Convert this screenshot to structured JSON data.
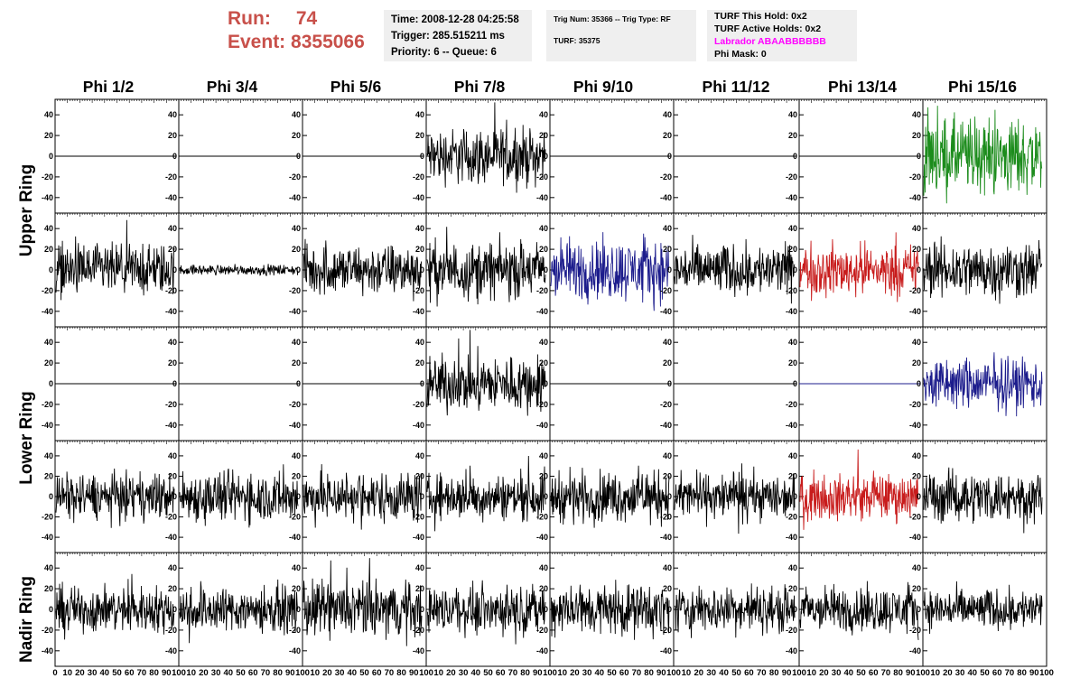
{
  "header": {
    "run_label": "Run:",
    "run_value": "74",
    "event_label": "Event:",
    "event_value": "8355066"
  },
  "info_time": {
    "time": "Time: 2008-12-28 04:25:58",
    "trigger": "Trigger: 285.515211 ms",
    "priority": "Priority: 6 -- Queue: 6"
  },
  "info_trig": {
    "trig": "Trig Num: 35366 -- Trig Type: RF",
    "turf": "TURF: 35375"
  },
  "info_turf": {
    "this_hold": "TURF This Hold: 0x2",
    "active_holds": "TURF Active Holds: 0x2",
    "labrador": "Labrador ABAABBBBBB",
    "phi_mask": "Phi Mask: 0"
  },
  "colors": {
    "labrador": "#ff00ff",
    "run_text": "#c8504a",
    "trace_black": "#000000",
    "trace_green": "#1c8c1c",
    "trace_blue": "#1c1c8c",
    "trace_red": "#c81c1c"
  },
  "phi_headers": [
    "Phi 1/2",
    "Phi 3/4",
    "Phi 5/6",
    "Phi 7/8",
    "Phi 9/10",
    "Phi 11/12",
    "Phi 13/14",
    "Phi 15/16"
  ],
  "ring_labels": [
    "Upper Ring",
    "Lower Ring",
    "Nadir Ring"
  ],
  "chart_data": {
    "type": "line",
    "panel_grid": {
      "rows": 5,
      "cols": 8
    },
    "y_ticks": [
      40,
      20,
      0,
      -20,
      -40
    ],
    "ylim": [
      -55,
      55
    ],
    "x_ticks": [
      0,
      10,
      20,
      30,
      40,
      50,
      60,
      70,
      80,
      90,
      100
    ],
    "xlim": [
      0,
      100
    ],
    "panels": [
      [
        "flat",
        "flat",
        "flat",
        "noise-black-22",
        "flat",
        "flat",
        "flat",
        "noise-green-30"
      ],
      [
        "noise-black-20",
        "noise-black-4",
        "noise-black-20",
        "noise-black-22",
        "noise-blue-24",
        "noise-black-20",
        "noise-red-20",
        "noise-black-22"
      ],
      [
        "flat",
        "flat",
        "flat",
        "noise-black-22",
        "flat",
        "flat",
        "flat-blue",
        "noise-blue-20"
      ],
      [
        "noise-black-18",
        "noise-black-20",
        "noise-black-20",
        "noise-black-18",
        "noise-black-20",
        "noise-black-18",
        "noise-red-18",
        "noise-black-20"
      ],
      [
        "noise-black-18",
        "noise-black-18",
        "noise-black-22",
        "noise-black-18",
        "noise-black-20",
        "noise-black-18",
        "noise-black-18",
        "noise-black-16"
      ]
    ]
  }
}
